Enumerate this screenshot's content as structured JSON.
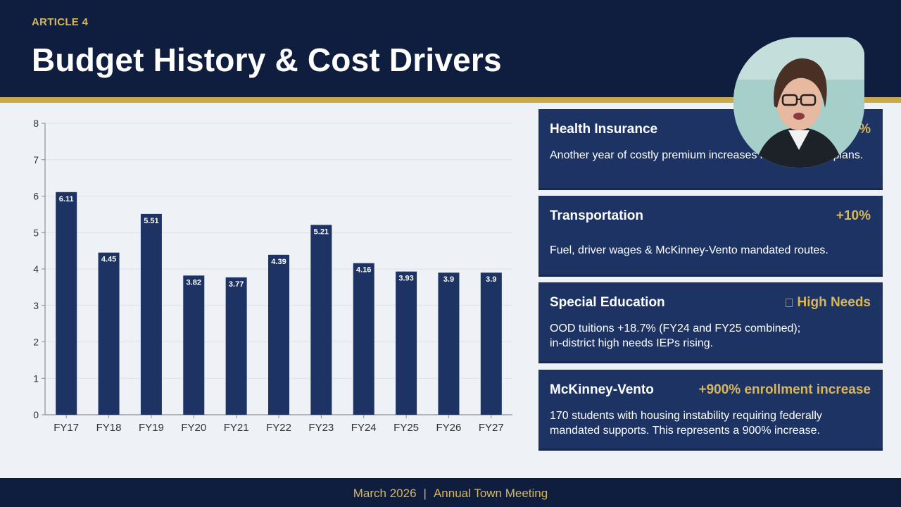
{
  "header": {
    "kicker": "ARTICLE 4",
    "title": "Budget History & Cost Drivers"
  },
  "chart_data": {
    "type": "bar",
    "categories": [
      "FY17",
      "FY18",
      "FY19",
      "FY20",
      "FY21",
      "FY22",
      "FY23",
      "FY24",
      "FY25",
      "FY26",
      "FY27"
    ],
    "values": [
      6.11,
      4.45,
      5.51,
      3.82,
      3.77,
      4.39,
      5.21,
      4.16,
      3.93,
      3.9,
      3.9
    ],
    "data_labels": [
      "6.11",
      "4.45",
      "5.51",
      "3.82",
      "3.77",
      "4.39",
      "5.21",
      "4.16",
      "3.93",
      "3.9",
      "3.9"
    ],
    "yticks": [
      "0",
      "1",
      "2",
      "3",
      "4",
      "5",
      "6",
      "7",
      "8"
    ],
    "ylim": [
      0,
      8
    ],
    "title": "",
    "xlabel": "",
    "ylabel": "",
    "bar_color": "#1c3364",
    "grid": true
  },
  "cards": [
    {
      "title": "Health Insurance",
      "stat": "+%",
      "body": "Another year of costly premium increases in staff benefit plans."
    },
    {
      "title": "Transportation",
      "stat": "+10%",
      "body": "Fuel, driver wages & McKinney-Vento mandated routes."
    },
    {
      "title": "Special Education",
      "stat": "High Needs",
      "body_line1": "OOD tuitions +18.7% (FY24 and FY25 combined);",
      "body_line2": "in-district high needs IEPs rising."
    },
    {
      "title": "McKinney-Vento",
      "stat": "+900% enrollment increase",
      "body": "170 students with housing instability requiring federally mandated supports. This represents a 900% increase."
    }
  ],
  "footer": {
    "date": "March 2026",
    "separator": "|",
    "event": "Annual Town Meeting"
  },
  "colors": {
    "navy": "#0f1d3f",
    "card": "#1c3364",
    "gold": "#c9a94a",
    "gold_text": "#d8b75a",
    "background": "#eef1f5"
  }
}
